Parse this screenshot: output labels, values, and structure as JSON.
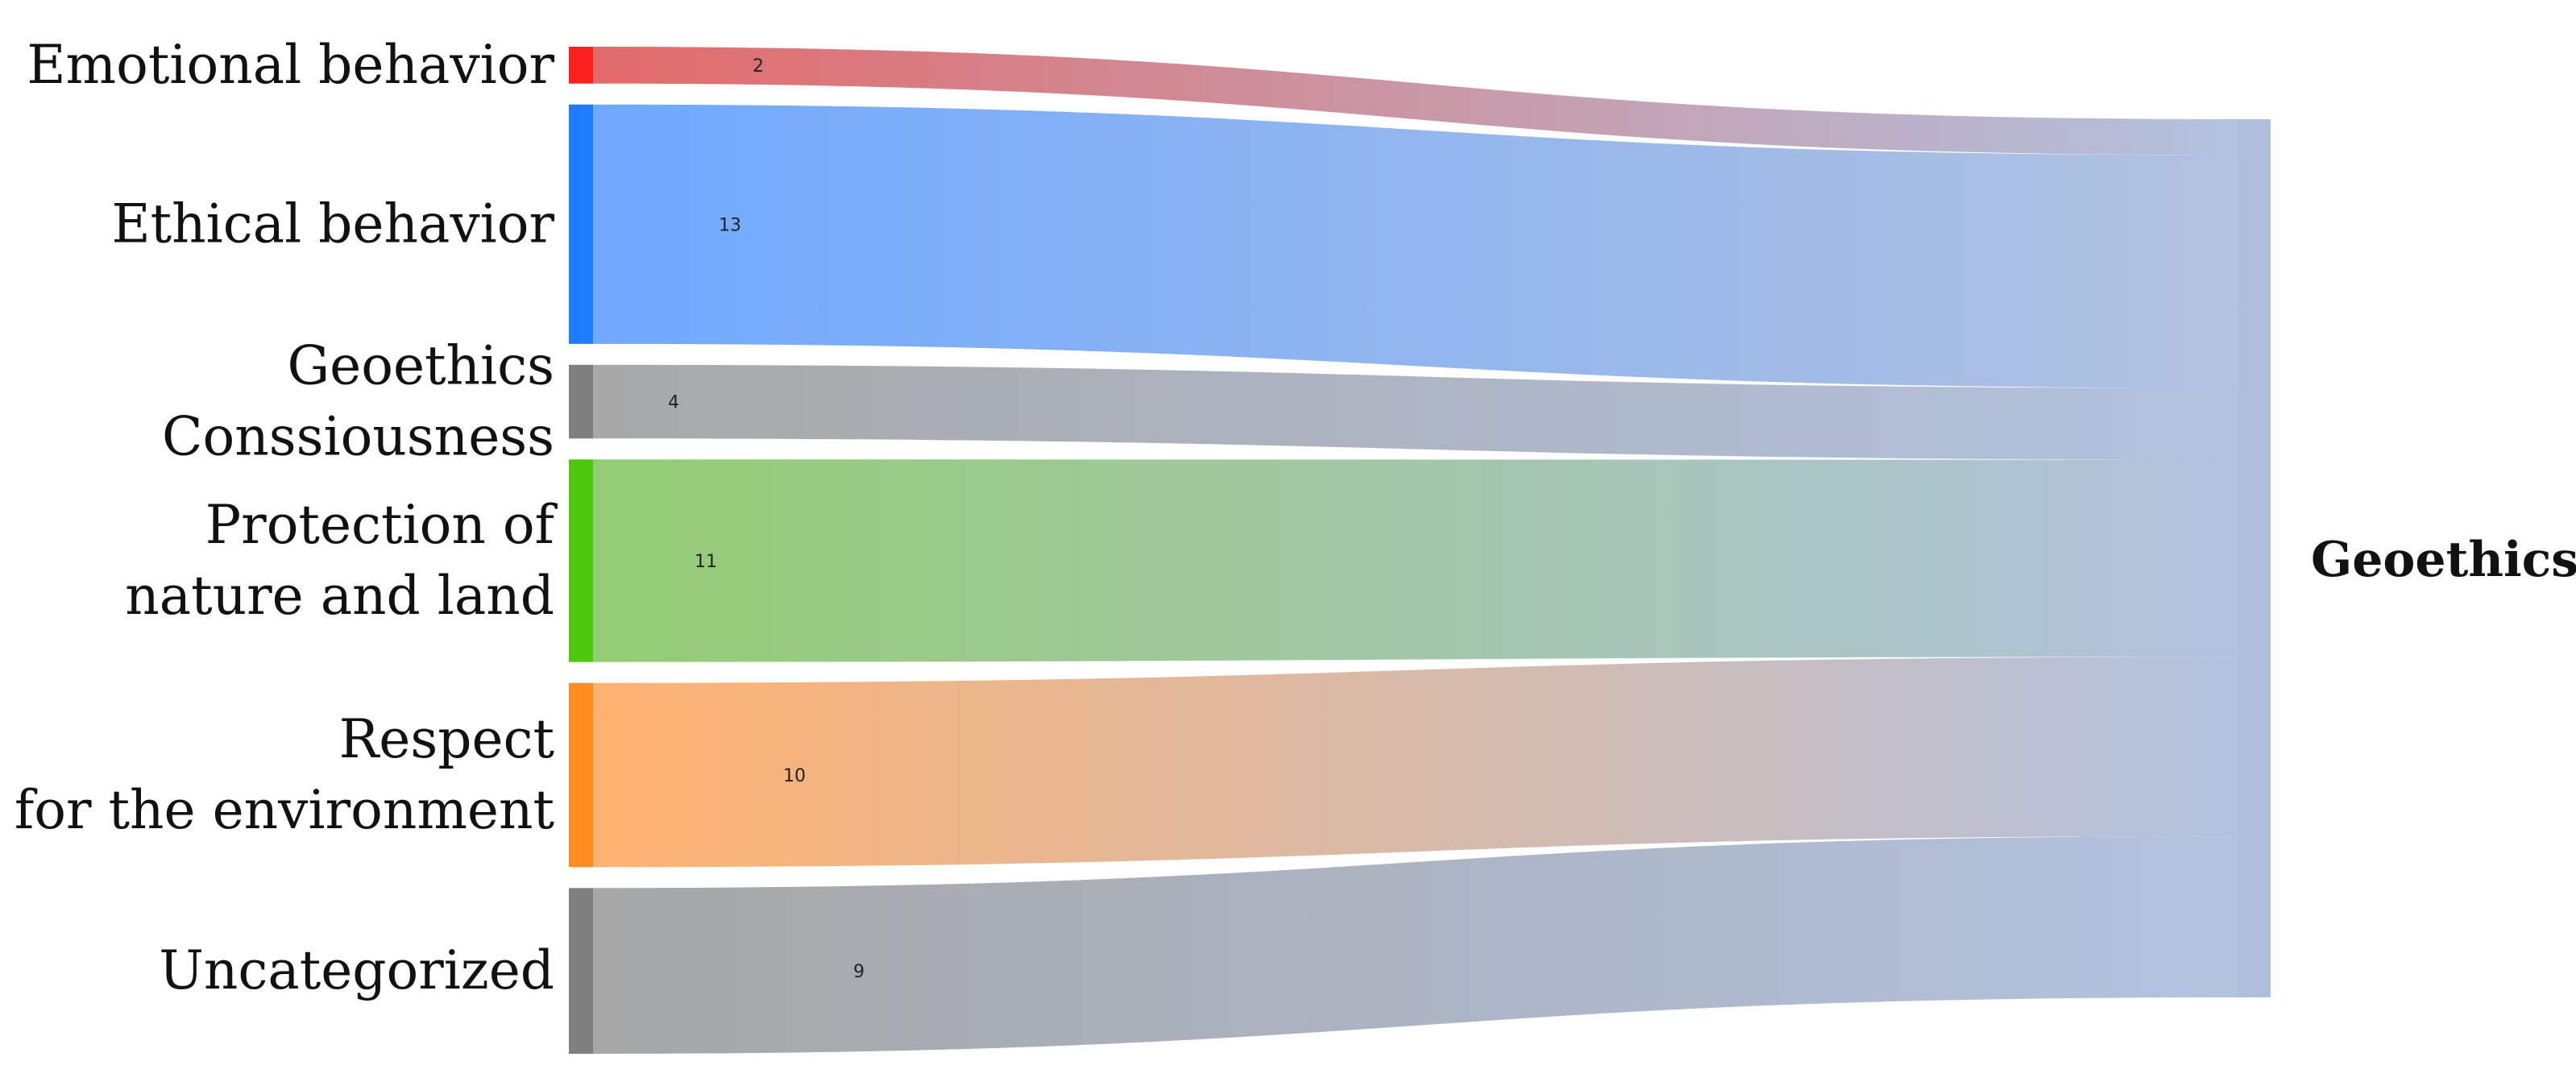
{
  "chart_data": {
    "type": "sankey",
    "target": {
      "label": "Geoethics",
      "color": "#aebfdd"
    },
    "flows": [
      {
        "source": "Emotional behavior",
        "label_lines": [
          "Emotional behavior"
        ],
        "value": 2,
        "node_color": "#ff1f1f",
        "link_color": "#e36a6a"
      },
      {
        "source": "Ethical behavior",
        "label_lines": [
          "Ethical behavior"
        ],
        "value": 13,
        "node_color": "#1f7bff",
        "link_color": "#6fa9ff"
      },
      {
        "source": "Geoethics Conssiousness",
        "label_lines": [
          "Geoethics",
          "Conssiousness"
        ],
        "value": 4,
        "node_color": "#7f7f7f",
        "link_color": "#a8a8a8"
      },
      {
        "source": "Protection of nature and land",
        "label_lines": [
          "Protection of",
          "nature and land"
        ],
        "value": 11,
        "node_color": "#4cc80f",
        "link_color": "#93cc72"
      },
      {
        "source": "Respect for the environment",
        "label_lines": [
          "Respect",
          "for  the environment"
        ],
        "value": 10,
        "node_color": "#ff8c1f",
        "link_color": "#ffb270"
      },
      {
        "source": "Uncategorized",
        "label_lines": [
          "Uncategorized"
        ],
        "value": 9,
        "node_color": "#7f7f7f",
        "link_color": "#a6a6a6"
      }
    ]
  }
}
